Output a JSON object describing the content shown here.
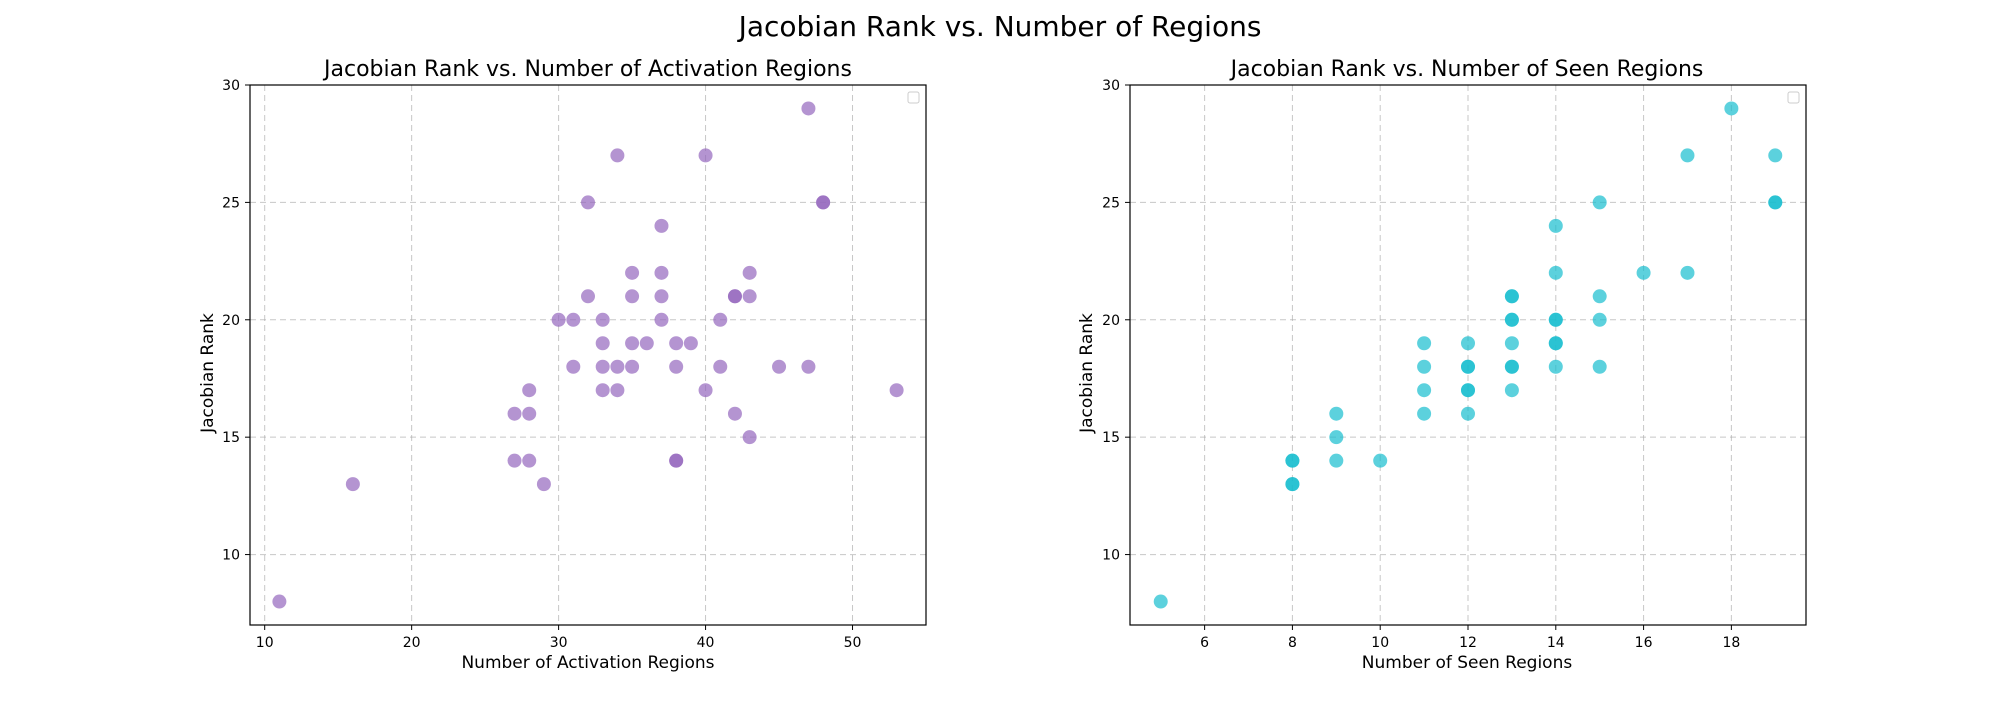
{
  "figure": {
    "suptitle": "Jacobian Rank vs. Number of Regions"
  },
  "chart_data": [
    {
      "type": "scatter",
      "title": "Jacobian Rank vs. Number of Activation Regions",
      "xlabel": "Number of Activation Regions",
      "ylabel": "Jacobian Rank",
      "xlim": [
        9,
        55
      ],
      "ylim": [
        7,
        30
      ],
      "xticks": [
        10,
        20,
        30,
        40,
        50
      ],
      "yticks": [
        10,
        15,
        20,
        25,
        30
      ],
      "grid": true,
      "legend": "top-right (empty)",
      "color": "#9467bd",
      "points": [
        [
          11,
          8
        ],
        [
          16,
          13
        ],
        [
          27,
          16
        ],
        [
          27,
          14
        ],
        [
          28,
          17
        ],
        [
          28,
          16
        ],
        [
          28,
          14
        ],
        [
          29,
          13
        ],
        [
          30,
          20
        ],
        [
          31,
          20
        ],
        [
          31,
          18
        ],
        [
          32,
          25
        ],
        [
          32,
          21
        ],
        [
          33,
          20
        ],
        [
          33,
          19
        ],
        [
          33,
          18
        ],
        [
          33,
          17
        ],
        [
          34,
          27
        ],
        [
          34,
          18
        ],
        [
          34,
          17
        ],
        [
          35,
          22
        ],
        [
          35,
          21
        ],
        [
          35,
          19
        ],
        [
          35,
          18
        ],
        [
          36,
          19
        ],
        [
          37,
          24
        ],
        [
          37,
          22
        ],
        [
          37,
          21
        ],
        [
          37,
          20
        ],
        [
          38,
          19
        ],
        [
          38,
          18
        ],
        [
          38,
          14
        ],
        [
          38,
          14
        ],
        [
          39,
          19
        ],
        [
          40,
          27
        ],
        [
          40,
          17
        ],
        [
          41,
          20
        ],
        [
          41,
          18
        ],
        [
          42,
          21
        ],
        [
          42,
          21
        ],
        [
          42,
          16
        ],
        [
          43,
          22
        ],
        [
          43,
          21
        ],
        [
          43,
          15
        ],
        [
          45,
          18
        ],
        [
          47,
          29
        ],
        [
          47,
          18
        ],
        [
          48,
          25
        ],
        [
          48,
          25
        ],
        [
          53,
          17
        ]
      ]
    },
    {
      "type": "scatter",
      "title": "Jacobian Rank vs. Number of Seen Regions",
      "xlabel": "Number of Seen Regions",
      "ylabel": "Jacobian Rank",
      "xlim": [
        4.3,
        19.7
      ],
      "ylim": [
        7,
        30
      ],
      "xticks": [
        6,
        8,
        10,
        12,
        14,
        16,
        18
      ],
      "yticks": [
        10,
        15,
        20,
        25,
        30
      ],
      "grid": true,
      "legend": "top-right (empty)",
      "color": "#17becf",
      "points": [
        [
          5,
          8
        ],
        [
          8,
          14
        ],
        [
          8,
          14
        ],
        [
          8,
          13
        ],
        [
          8,
          13
        ],
        [
          9,
          16
        ],
        [
          9,
          15
        ],
        [
          9,
          14
        ],
        [
          10,
          14
        ],
        [
          11,
          19
        ],
        [
          11,
          18
        ],
        [
          11,
          17
        ],
        [
          11,
          16
        ],
        [
          12,
          19
        ],
        [
          12,
          18
        ],
        [
          12,
          18
        ],
        [
          12,
          17
        ],
        [
          12,
          17
        ],
        [
          12,
          16
        ],
        [
          13,
          21
        ],
        [
          13,
          21
        ],
        [
          13,
          20
        ],
        [
          13,
          20
        ],
        [
          13,
          19
        ],
        [
          13,
          18
        ],
        [
          13,
          18
        ],
        [
          13,
          17
        ],
        [
          14,
          24
        ],
        [
          14,
          22
        ],
        [
          14,
          20
        ],
        [
          14,
          20
        ],
        [
          14,
          19
        ],
        [
          14,
          19
        ],
        [
          14,
          18
        ],
        [
          15,
          25
        ],
        [
          15,
          21
        ],
        [
          15,
          20
        ],
        [
          15,
          18
        ],
        [
          16,
          22
        ],
        [
          17,
          27
        ],
        [
          17,
          22
        ],
        [
          18,
          29
        ],
        [
          19,
          27
        ],
        [
          19,
          25
        ],
        [
          19,
          25
        ]
      ]
    }
  ]
}
